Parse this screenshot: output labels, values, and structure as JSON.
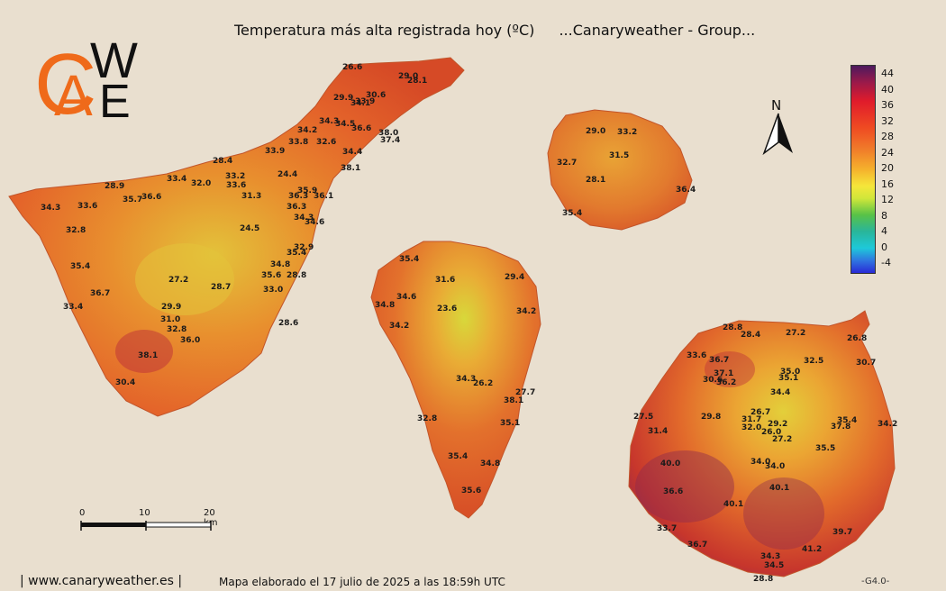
{
  "header": {
    "title": "Temperatura más alta registrada hoy (ºC)",
    "group": "...Canaryweather - Group..."
  },
  "logo": {
    "letters": [
      "C",
      "A",
      "W",
      "E"
    ],
    "color_orange": "#ef6a1a",
    "color_black": "#111111"
  },
  "legend": {
    "labels": [
      "44",
      "40",
      "36",
      "32",
      "28",
      "24",
      "20",
      "16",
      "12",
      "8",
      "4",
      "0",
      "-4"
    ]
  },
  "north_arrow": {
    "label": "N",
    "icon": "north-arrow-icon"
  },
  "scale_bar": {
    "labels": [
      "0",
      "10",
      "20 km"
    ]
  },
  "footer": {
    "website": "| www.canaryweather.es |",
    "caption": "Mapa elaborado el 17 julio de 2025 a las 18:59h UTC",
    "version": "-G4.0-"
  },
  "map_data": {
    "tenerife": [
      "26.6",
      "29.0",
      "28.1",
      "29.9",
      "30.6",
      "33.9",
      "34.1",
      "34.3",
      "34.5",
      "34.2",
      "36.6",
      "38.0",
      "37.4",
      "33.8",
      "32.6",
      "34.4",
      "38.1",
      "28.4",
      "33.9",
      "24.4",
      "33.2",
      "33.6",
      "28.9",
      "33.4",
      "32.0",
      "31.3",
      "35.9",
      "36.3",
      "36.1",
      "35.7",
      "36.6",
      "34.3",
      "33.6",
      "36.3",
      "34.3",
      "34.6",
      "24.5",
      "32.8",
      "32.9",
      "35.4",
      "35.4",
      "34.8",
      "27.2",
      "35.6",
      "28.8",
      "28.7",
      "33.0",
      "36.7",
      "33.4",
      "29.9",
      "31.0",
      "32.8",
      "28.6",
      "36.0",
      "38.1",
      "30.4"
    ],
    "la_gomera": [
      "29.0",
      "33.2",
      "31.5",
      "32.7",
      "28.1",
      "36.4",
      "35.4"
    ],
    "la_palma": [
      "35.4",
      "31.6",
      "29.4",
      "34.6",
      "34.8",
      "23.6",
      "34.2",
      "34.2",
      "34.3",
      "26.2",
      "27.7",
      "38.1",
      "32.8",
      "35.1",
      "35.4",
      "34.8",
      "35.6"
    ],
    "gran_canaria": [
      "28.8",
      "28.4",
      "27.2",
      "26.8",
      "33.6",
      "36.7",
      "32.5",
      "30.7",
      "37.1",
      "35.0",
      "30.6",
      "36.2",
      "35.1",
      "34.4",
      "26.7",
      "27.5",
      "29.8",
      "31.7",
      "29.2",
      "35.4",
      "34.2",
      "31.4",
      "32.0",
      "26.0",
      "37.8",
      "27.2",
      "35.5",
      "40.0",
      "34.0",
      "34.0",
      "40.1",
      "36.6",
      "40.1",
      "33.7",
      "39.7",
      "36.7",
      "34.3",
      "41.2",
      "34.5",
      "28.8"
    ]
  }
}
